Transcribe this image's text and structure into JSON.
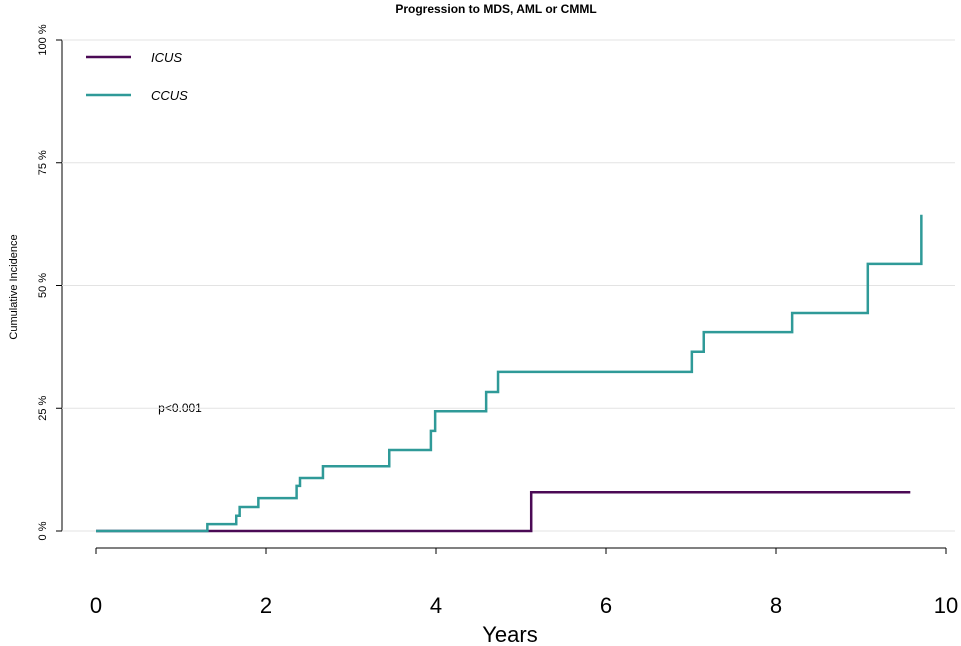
{
  "chart_data": {
    "type": "step",
    "title": "Progression to MDS, AML or CMML",
    "x_label": "Years",
    "y_label": "Cumulative Incidence",
    "annotation": "p<0.001",
    "xlim": [
      0,
      10
    ],
    "xticks": [
      0,
      2,
      4,
      6,
      8,
      10
    ],
    "ylim": [
      0,
      100
    ],
    "yticks": [
      {
        "value": 0,
        "label": "0 %"
      },
      {
        "value": 25,
        "label": "25 %"
      },
      {
        "value": 50,
        "label": "50 %"
      },
      {
        "value": 75,
        "label": "75 %"
      },
      {
        "value": 100,
        "label": "100 %"
      }
    ],
    "grid": true,
    "legend": "top-left",
    "series": [
      {
        "name": "ICUS",
        "color": "#4b0a55",
        "x": [
          0,
          5.12,
          9.58
        ],
        "values": [
          0,
          7.9,
          7.9
        ]
      },
      {
        "name": "CCUS",
        "color": "#2f9a98",
        "x": [
          0,
          1.31,
          1.65,
          1.69,
          1.91,
          2.36,
          2.4,
          2.67,
          3.45,
          3.94,
          3.99,
          4.59,
          4.73,
          7.01,
          7.15,
          8.19,
          9.08,
          9.71
        ],
        "values": [
          0,
          1.4,
          3.1,
          4.9,
          6.7,
          9.2,
          10.8,
          13.2,
          16.5,
          20.4,
          24.4,
          28.3,
          32.4,
          36.5,
          40.5,
          44.4,
          54.4,
          64.4
        ]
      }
    ]
  }
}
